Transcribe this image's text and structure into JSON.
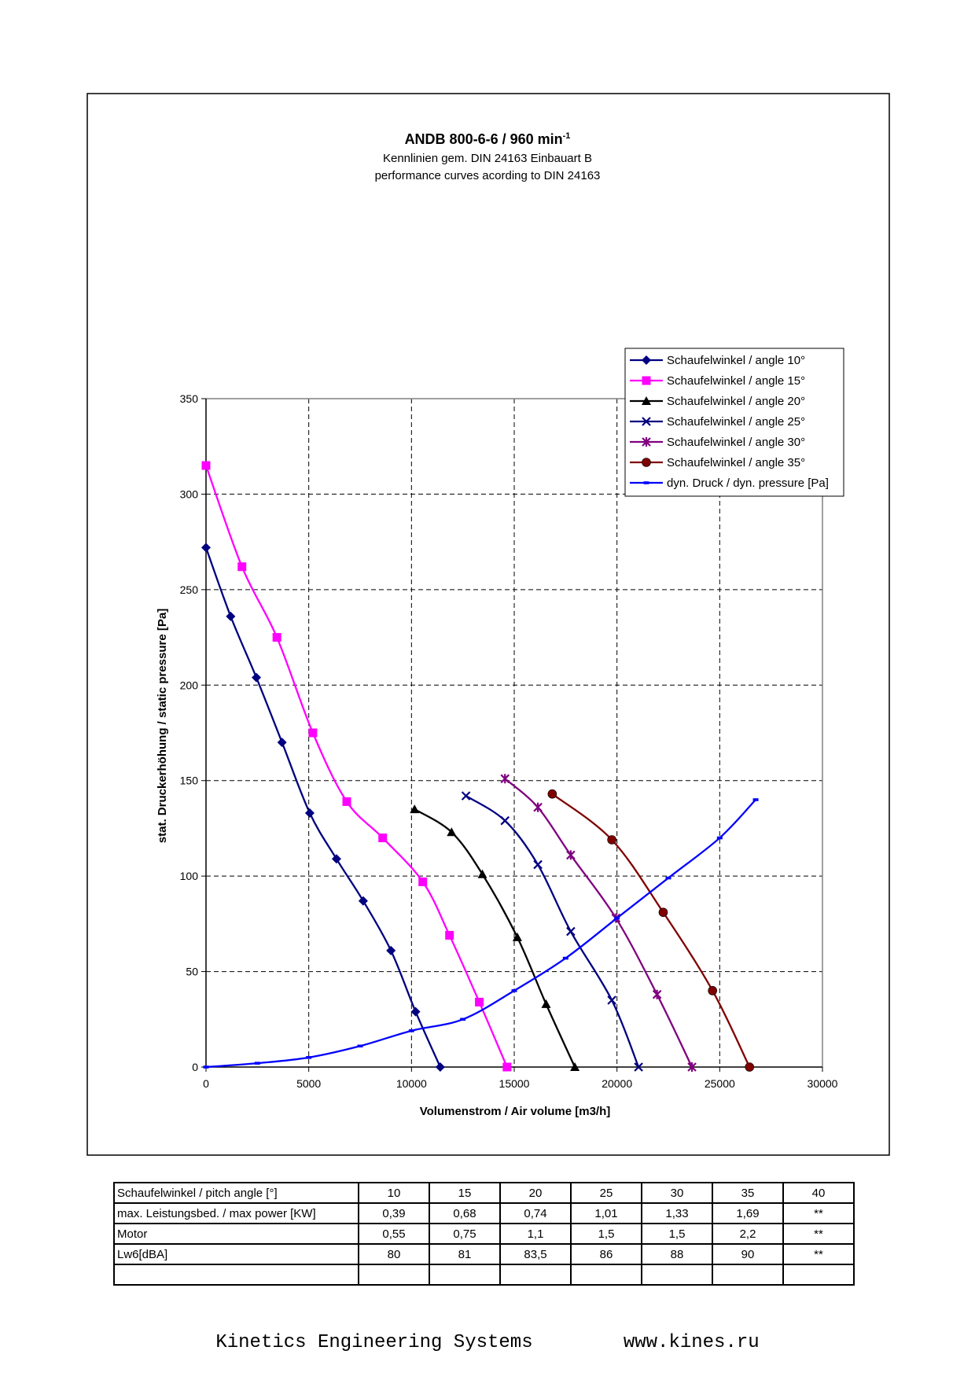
{
  "chart_data": {
    "type": "line",
    "title": "ANDB 800-6-6 / 960 min",
    "title_superscript": "-1",
    "subtitle_lines": [
      "Kennlinien gem. DIN 24163 Einbauart B",
      "performance curves acording to DIN 24163"
    ],
    "xlabel": "Volumenstrom / Air volume [m3/h]",
    "ylabel": "stat. Druckerhöhung / static pressure [Pa]",
    "xlim": [
      0,
      30000
    ],
    "ylim": [
      0,
      350
    ],
    "x_ticks": [
      0,
      5000,
      10000,
      15000,
      20000,
      25000,
      30000
    ],
    "y_ticks": [
      0,
      50,
      100,
      150,
      200,
      250,
      300,
      350
    ],
    "grid": true,
    "legend_position": "top-right",
    "series": [
      {
        "name": "Schaufelwinkel / angle 10°",
        "color": "#000080",
        "marker": "diamond",
        "points": [
          [
            0,
            272
          ],
          [
            1200,
            236
          ],
          [
            2450,
            204
          ],
          [
            3700,
            170
          ],
          [
            5050,
            133
          ],
          [
            6350,
            109
          ],
          [
            7650,
            87
          ],
          [
            9000,
            61
          ],
          [
            10200,
            29
          ],
          [
            11400,
            0
          ]
        ]
      },
      {
        "name": "Schaufelwinkel / angle 15°",
        "color": "#ff00ff",
        "marker": "square",
        "points": [
          [
            0,
            315
          ],
          [
            1750,
            262
          ],
          [
            3450,
            225
          ],
          [
            5200,
            175
          ],
          [
            6850,
            139
          ],
          [
            8600,
            120
          ],
          [
            10550,
            97
          ],
          [
            11850,
            69
          ],
          [
            13300,
            34
          ],
          [
            14650,
            0
          ]
        ]
      },
      {
        "name": "Schaufelwinkel / angle 20°",
        "color": "#000000",
        "marker": "triangle",
        "points": [
          [
            10150,
            135
          ],
          [
            11950,
            123
          ],
          [
            13450,
            101
          ],
          [
            15150,
            68
          ],
          [
            16550,
            33
          ],
          [
            17950,
            0
          ]
        ]
      },
      {
        "name": "Schaufelwinkel / angle 25°",
        "color": "#000080",
        "marker": "x",
        "points": [
          [
            12650,
            142
          ],
          [
            14550,
            129
          ],
          [
            16150,
            106
          ],
          [
            17750,
            71
          ],
          [
            19750,
            35
          ],
          [
            21050,
            0
          ]
        ]
      },
      {
        "name": "Schaufelwinkel / angle 30°",
        "color": "#800080",
        "marker": "star",
        "points": [
          [
            14550,
            151
          ],
          [
            16150,
            136
          ],
          [
            17750,
            111
          ],
          [
            19950,
            78
          ],
          [
            21950,
            38
          ],
          [
            23650,
            0
          ]
        ]
      },
      {
        "name": "Schaufelwinkel / angle 35°",
        "color": "#800000",
        "marker": "circle",
        "points": [
          [
            16850,
            143
          ],
          [
            19750,
            119
          ],
          [
            22250,
            81
          ],
          [
            24650,
            40
          ],
          [
            26450,
            0
          ]
        ]
      },
      {
        "name": "dyn. Druck / dyn. pressure [Pa]",
        "color": "#0000ff",
        "marker": "dash",
        "points": [
          [
            0,
            0
          ],
          [
            2500,
            2
          ],
          [
            5000,
            5
          ],
          [
            7500,
            11
          ],
          [
            10000,
            19
          ],
          [
            12500,
            25
          ],
          [
            15000,
            40
          ],
          [
            17500,
            57
          ],
          [
            20000,
            78
          ],
          [
            22500,
            99
          ],
          [
            25000,
            120
          ],
          [
            26750,
            140
          ]
        ]
      }
    ]
  },
  "table": {
    "rows": [
      {
        "label": "Schaufelwinkel / pitch angle [°]",
        "values": [
          "10",
          "15",
          "20",
          "25",
          "30",
          "35",
          "40"
        ]
      },
      {
        "label": "max. Leistungsbed. / max power [KW]",
        "values": [
          "0,39",
          "0,68",
          "0,74",
          "1,01",
          "1,33",
          "1,69",
          "**"
        ]
      },
      {
        "label": "Motor",
        "values": [
          "0,55",
          "0,75",
          "1,1",
          "1,5",
          "1,5",
          "2,2",
          "**"
        ]
      },
      {
        "label": "Lw6[dBA]",
        "values": [
          "80",
          "81",
          "83,5",
          "86",
          "88",
          "90",
          "**"
        ]
      },
      {
        "label": "",
        "values": [
          "",
          "",
          "",
          "",
          "",
          "",
          ""
        ]
      }
    ]
  },
  "footer": {
    "company": "Kinetics Engineering Systems",
    "url": "www.kines.ru"
  }
}
